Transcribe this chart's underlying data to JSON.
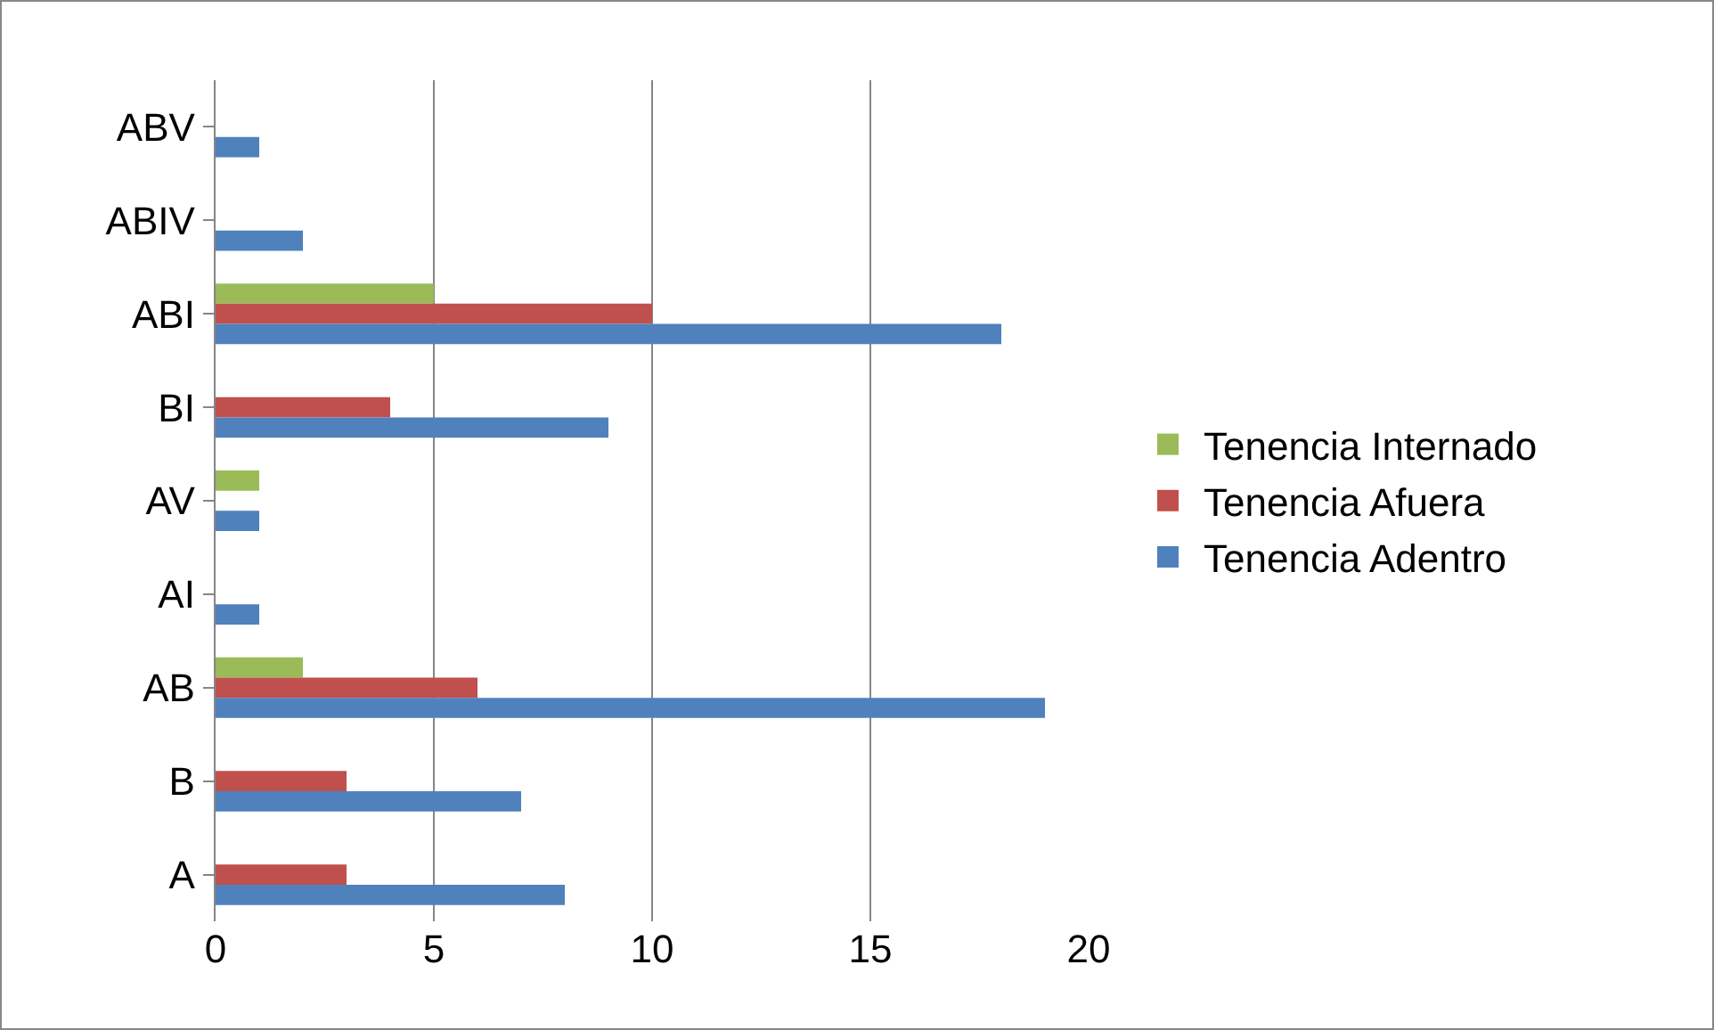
{
  "chart_data": {
    "type": "bar",
    "orientation": "horizontal",
    "categories": [
      "ABV",
      "ABIV",
      "ABI",
      "BI",
      "AV",
      "AI",
      "AB",
      "B",
      "A"
    ],
    "series": [
      {
        "name": "Tenencia Internado",
        "color": "#9bbb59",
        "values": [
          null,
          null,
          5,
          null,
          1,
          null,
          2,
          null,
          null
        ]
      },
      {
        "name": "Tenencia Afuera",
        "color": "#c0504d",
        "values": [
          null,
          null,
          10,
          4,
          null,
          null,
          6,
          3,
          3
        ]
      },
      {
        "name": "Tenencia Adentro",
        "color": "#4f81bd",
        "values": [
          1,
          2,
          18,
          9,
          1,
          1,
          19,
          7,
          8
        ]
      }
    ],
    "xlim": [
      0,
      20
    ],
    "xticks": [
      0,
      5,
      10,
      15,
      20
    ],
    "grid": "x",
    "legend": "right"
  }
}
